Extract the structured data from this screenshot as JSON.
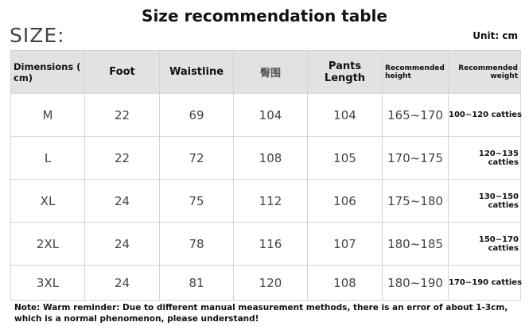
{
  "title": "Size recommendation table",
  "size_label": "SIZE:",
  "unit": "Unit: cm",
  "headers": [
    "Dimensions ( cm)",
    "Foot",
    "Waistline",
    "臀围",
    "Pants Length",
    "Recommended height",
    "Recommended weight"
  ],
  "rows": [
    [
      "M",
      "22",
      "69",
      "104",
      "104",
      "165~170",
      "100~120 catties"
    ],
    [
      "L",
      "22",
      "72",
      "108",
      "105",
      "170~175",
      "120~135 catties"
    ],
    [
      "XL",
      "24",
      "75",
      "112",
      "106",
      "175~180",
      "130~150 catties"
    ],
    [
      "2XL",
      "24",
      "78",
      "116",
      "107",
      "180~185",
      "150~170 catties"
    ],
    [
      "3XL",
      "24",
      "81",
      "120",
      "108",
      "180~190",
      "170~190 catties"
    ]
  ],
  "note_line1": "Note: Warm reminder: Due to different manual measurement methods, there is an error of about 1-3cm,",
  "note_line2": "which is a normal phenomenon, please understand!"
}
